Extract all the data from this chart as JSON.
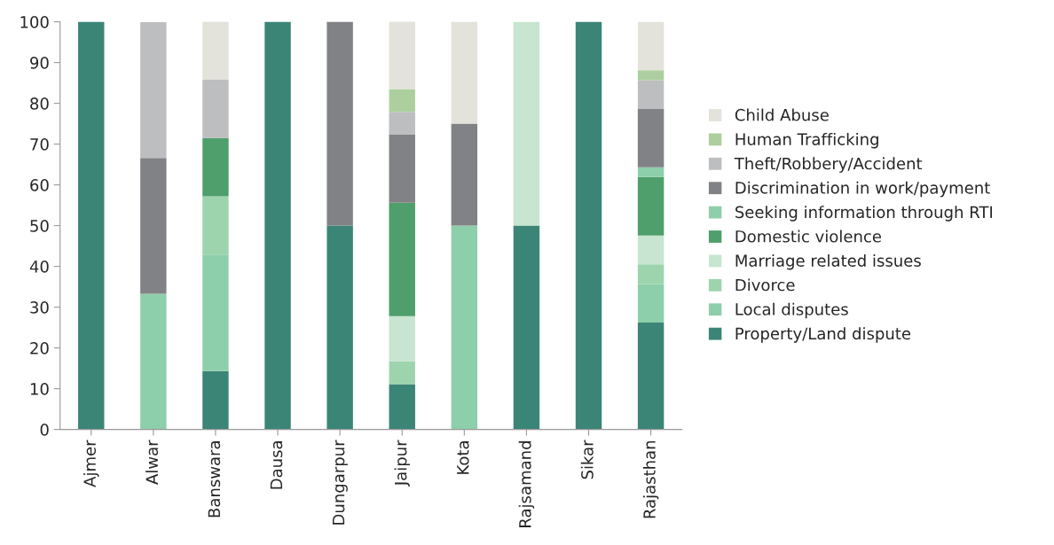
{
  "chart_data": {
    "type": "bar",
    "stacked": true,
    "categories": [
      "Ajmer",
      "Alwar",
      "Banswara",
      "Dausa",
      "Dungarpur",
      "Jaipur",
      "Kota",
      "Rajsamand",
      "Sikar",
      "Rajasthan"
    ],
    "series": [
      {
        "name": "Property/Land dispute",
        "color": "#3b8577",
        "values": [
          100,
          0,
          14.3,
          100,
          50,
          11.1,
          0,
          50,
          100,
          26.2
        ]
      },
      {
        "name": "Local disputes",
        "color": "#8ecfab",
        "values": [
          0,
          33.3,
          28.6,
          0,
          0,
          0,
          50,
          0,
          0,
          9.5
        ]
      },
      {
        "name": "Divorce",
        "color": "#9dd4ae",
        "values": [
          0,
          0,
          14.3,
          0,
          0,
          5.6,
          0,
          0,
          0,
          4.8
        ]
      },
      {
        "name": "Marriage related issues",
        "color": "#c7e5d0",
        "values": [
          0,
          0,
          0,
          0,
          0,
          11.1,
          0,
          50,
          0,
          7.1
        ]
      },
      {
        "name": "Domestic violence",
        "color": "#4e9f6b",
        "values": [
          0,
          0,
          14.3,
          0,
          0,
          27.8,
          0,
          0,
          0,
          14.3
        ]
      },
      {
        "name": "Seeking information through RTI",
        "color": "#8ecfab",
        "values": [
          0,
          0,
          0,
          0,
          0,
          0,
          0,
          0,
          0,
          2.4
        ]
      },
      {
        "name": "Discrimination in work/payment",
        "color": "#818285",
        "values": [
          0,
          33.3,
          0,
          0,
          50,
          16.7,
          25,
          0,
          0,
          14.3
        ]
      },
      {
        "name": "Theft/Robbery/Accident",
        "color": "#bdbec0",
        "values": [
          0,
          33.3,
          14.3,
          0,
          0,
          5.6,
          0,
          0,
          0,
          7.1
        ]
      },
      {
        "name": "Human Trafficking",
        "color": "#adcf9e",
        "values": [
          0,
          0,
          0,
          0,
          0,
          5.6,
          0,
          0,
          0,
          2.4
        ]
      },
      {
        "name": "Child Abuse",
        "color": "#e3e3db",
        "values": [
          0,
          0,
          14.3,
          0,
          0,
          16.7,
          25,
          0,
          0,
          11.9
        ]
      }
    ],
    "ylim": [
      0,
      100
    ],
    "yticks": [
      0,
      10,
      20,
      30,
      40,
      50,
      60,
      70,
      80,
      90,
      100
    ],
    "grid": false,
    "legend": "right"
  }
}
